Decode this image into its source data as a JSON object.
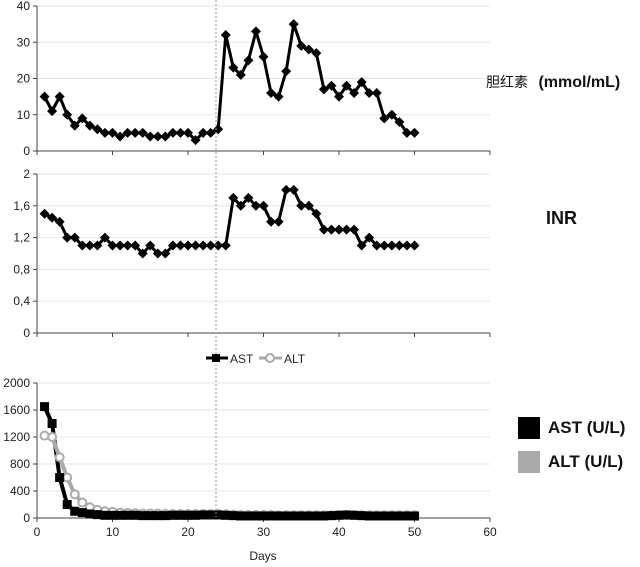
{
  "chart_data": [
    {
      "type": "line",
      "ylabel_prefix": "胆红素",
      "ylabel": "(mmol/mL)",
      "ylim": [
        0,
        40
      ],
      "yticks": [
        0,
        10,
        20,
        30,
        40
      ],
      "xlim": [
        0,
        60
      ],
      "series": [
        {
          "color": "#000000",
          "marker": "diamond",
          "x": [
            1,
            2,
            3,
            4,
            5,
            6,
            7,
            8,
            9,
            10,
            11,
            12,
            13,
            14,
            15,
            16,
            17,
            18,
            19,
            20,
            21,
            22,
            23,
            24,
            25,
            26,
            27,
            28,
            29,
            30,
            31,
            32,
            33,
            34,
            35,
            36,
            37,
            38,
            39,
            40,
            41,
            42,
            43,
            44,
            45,
            46,
            47,
            48,
            49,
            50
          ],
          "y": [
            15,
            11,
            15,
            10,
            7,
            9,
            7,
            6,
            5,
            5,
            4,
            5,
            5,
            5,
            4,
            4,
            4,
            5,
            5,
            5,
            3,
            5,
            5,
            6,
            32,
            23,
            21,
            25,
            33,
            26,
            16,
            15,
            22,
            35,
            29,
            28,
            27,
            17,
            18,
            15,
            18,
            16,
            19,
            16,
            16,
            9,
            10,
            8,
            5,
            5
          ]
        }
      ]
    },
    {
      "type": "line",
      "ylabel": "INR",
      "ylim": [
        0,
        2
      ],
      "yticks": [
        "0",
        "0,4",
        "0,8",
        "1,2",
        "1,6",
        "2"
      ],
      "xlim": [
        0,
        60
      ],
      "series": [
        {
          "color": "#000000",
          "marker": "diamond",
          "x": [
            1,
            2,
            3,
            4,
            5,
            6,
            7,
            8,
            9,
            10,
            11,
            12,
            13,
            14,
            15,
            16,
            17,
            18,
            19,
            20,
            21,
            22,
            23,
            24,
            25,
            26,
            27,
            28,
            29,
            30,
            31,
            32,
            33,
            34,
            35,
            36,
            37,
            38,
            39,
            40,
            41,
            42,
            43,
            44,
            45,
            46,
            47,
            48,
            49,
            50
          ],
          "y": [
            1.5,
            1.45,
            1.4,
            1.2,
            1.2,
            1.1,
            1.1,
            1.1,
            1.2,
            1.1,
            1.1,
            1.1,
            1.1,
            1.0,
            1.1,
            1.0,
            1.0,
            1.1,
            1.1,
            1.1,
            1.1,
            1.1,
            1.1,
            1.1,
            1.1,
            1.7,
            1.6,
            1.7,
            1.6,
            1.6,
            1.4,
            1.4,
            1.8,
            1.8,
            1.6,
            1.6,
            1.5,
            1.3,
            1.3,
            1.3,
            1.3,
            1.3,
            1.1,
            1.2,
            1.1,
            1.1,
            1.1,
            1.1,
            1.1,
            1.1
          ]
        }
      ]
    },
    {
      "type": "line",
      "xlabel": "Days",
      "ylim": [
        0,
        2000
      ],
      "yticks": [
        0,
        400,
        800,
        1200,
        1600,
        2000
      ],
      "xlim": [
        0,
        60
      ],
      "xticks": [
        0,
        10,
        20,
        30,
        40,
        50,
        60
      ],
      "legend_position": "top",
      "series": [
        {
          "name": "AST",
          "side_label": "AST (U/L)",
          "color": "#000000",
          "marker": "square",
          "x": [
            1,
            2,
            3,
            4,
            5,
            6,
            7,
            8,
            9,
            10,
            11,
            12,
            13,
            14,
            15,
            16,
            17,
            18,
            19,
            20,
            21,
            22,
            23,
            24,
            25,
            26,
            27,
            28,
            29,
            30,
            31,
            32,
            33,
            34,
            35,
            36,
            37,
            38,
            39,
            40,
            41,
            42,
            43,
            44,
            45,
            46,
            47,
            48,
            49,
            50
          ],
          "y": [
            1650,
            1400,
            600,
            200,
            100,
            80,
            60,
            50,
            40,
            40,
            40,
            40,
            40,
            35,
            35,
            35,
            35,
            40,
            40,
            40,
            40,
            45,
            45,
            45,
            40,
            35,
            30,
            30,
            30,
            30,
            30,
            30,
            30,
            30,
            30,
            30,
            30,
            30,
            35,
            40,
            45,
            40,
            35,
            30,
            30,
            30,
            30,
            30,
            30,
            30
          ]
        },
        {
          "name": "ALT",
          "side_label": "ALT (U/L)",
          "color": "#aaaaaa",
          "marker": "circle",
          "x": [
            1,
            2,
            3,
            4,
            5,
            6,
            7,
            8,
            9,
            10,
            11,
            12,
            13,
            14,
            15,
            16,
            17,
            18,
            19,
            20,
            21,
            22,
            23,
            24,
            25,
            26,
            27,
            28,
            29,
            30,
            31,
            32,
            33,
            34,
            35,
            36,
            37,
            38,
            39,
            40,
            41,
            42,
            43,
            44,
            45,
            46,
            47,
            48,
            49,
            50
          ],
          "y": [
            1220,
            1200,
            900,
            600,
            350,
            230,
            160,
            120,
            100,
            90,
            80,
            75,
            70,
            65,
            65,
            65,
            60,
            60,
            60,
            60,
            60,
            60,
            60,
            60,
            55,
            50,
            45,
            45,
            45,
            45,
            45,
            40,
            40,
            40,
            40,
            40,
            40,
            40,
            40,
            45,
            45,
            45,
            40,
            40,
            40,
            40,
            40,
            40,
            40,
            40
          ]
        }
      ]
    }
  ]
}
